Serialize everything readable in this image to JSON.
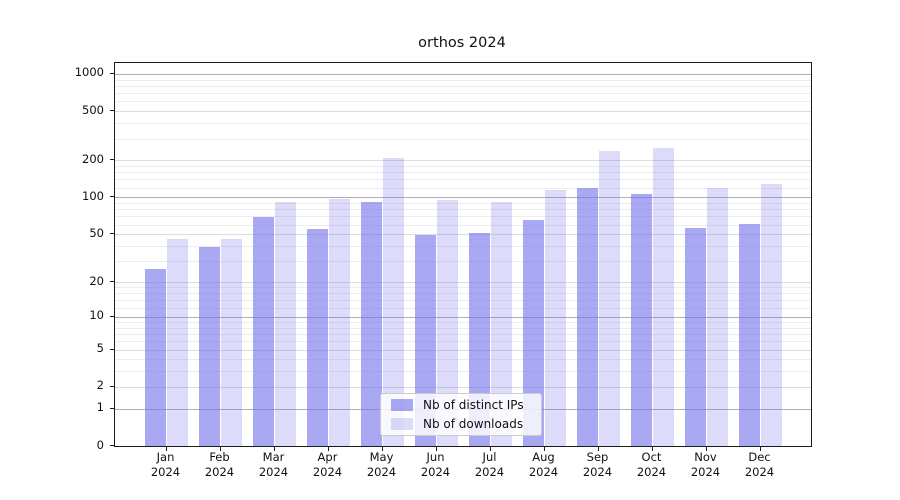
{
  "title": "orthos 2024",
  "chart_data": {
    "type": "bar",
    "title": "orthos 2024",
    "xlabel": "",
    "ylabel": "",
    "scale": "log1p",
    "grid": "both",
    "legend_position": "lower center",
    "categories": [
      "Jan",
      "Feb",
      "Mar",
      "Apr",
      "May",
      "Jun",
      "Jul",
      "Aug",
      "Sep",
      "Oct",
      "Nov",
      "Dec"
    ],
    "year": "2024",
    "yticks": [
      0,
      1,
      2,
      5,
      10,
      20,
      50,
      100,
      200,
      500,
      1000
    ],
    "ylim": [
      0,
      1200
    ],
    "series": [
      {
        "name": "Nb of distinct IPs",
        "color": "rgba(110,110,235,0.60)",
        "values": [
          26,
          39,
          69,
          55,
          91,
          49,
          51,
          66,
          120,
          106,
          56,
          61
        ]
      },
      {
        "name": "Nb of downloads",
        "color": "rgba(110,110,235,0.24)",
        "values": [
          46,
          46,
          92,
          97,
          210,
          95,
          92,
          114,
          240,
          252,
          119,
          128
        ]
      }
    ]
  }
}
